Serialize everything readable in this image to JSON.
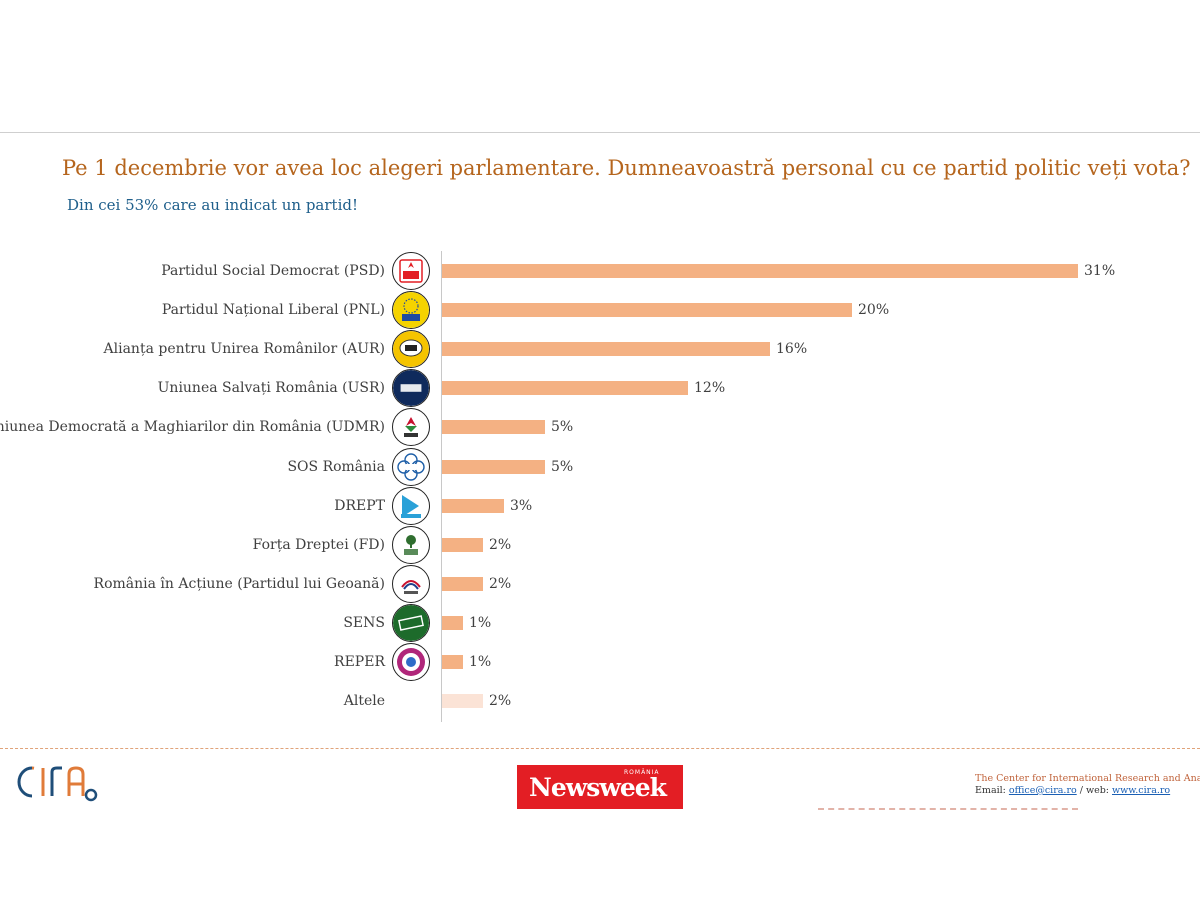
{
  "title": "Pe 1 decembrie vor avea loc alegeri parlamentare. Dumneavoastră personal cu ce partid politic veți vota?",
  "subtitle": "Din cei 53% care au indicat un partid!",
  "colors": {
    "bar": "#f4b183",
    "bar_other": "#fbe3d6",
    "title": "#b5651d",
    "subtitle": "#1f5f8b"
  },
  "chart_data": {
    "type": "bar",
    "orientation": "horizontal",
    "title": "Pe 1 decembrie vor avea loc alegeri parlamentare. Dumneavoastră personal cu ce partid politic veți vota?",
    "subtitle": "Din cei 53% care au indicat un partid!",
    "xlim": [
      0,
      31
    ],
    "grid": false,
    "legend": "none",
    "categories": [
      "Partidul Social Democrat (PSD)",
      "Partidul Național Liberal (PNL)",
      "Alianța pentru Unirea Românilor (AUR)",
      "Uniunea Salvați România (USR)",
      "Uniunea Democrată a Maghiarilor din România (UDMR)",
      "SOS România",
      "DREPT",
      "Forța Dreptei (FD)",
      "România în Acțiune (Partidul lui Geoană)",
      "SENS",
      "REPER",
      "Altele"
    ],
    "values": [
      31,
      20,
      16,
      12,
      5,
      5,
      3,
      2,
      2,
      1,
      1,
      2
    ],
    "value_labels": [
      "31%",
      "20%",
      "16%",
      "12%",
      "5%",
      "5%",
      "3%",
      "2%",
      "2%",
      "1%",
      "1%",
      "2%"
    ],
    "logos": [
      "psd-logo",
      "pnl-logo",
      "aur-logo",
      "usr-logo",
      "udmr-logo",
      "sos-logo",
      "drept-logo",
      "fd-logo",
      "ra-logo",
      "sens-logo",
      "reper-logo",
      ""
    ]
  },
  "footer": {
    "cira_logo": "CIRA",
    "newsweek_word": "Newsweek",
    "newsweek_country": "ROMÂNIA",
    "org_name": "The Center for International Research and Analyses",
    "email_label": "Email: ",
    "email": "office@cira.ro",
    "web_label": " / web: ",
    "web": "www.cira.ro"
  }
}
